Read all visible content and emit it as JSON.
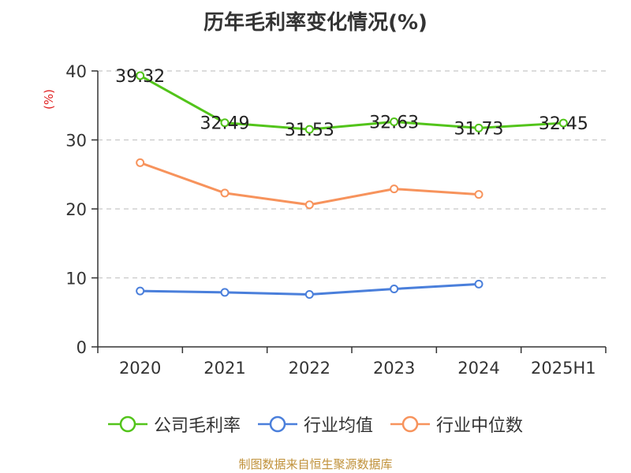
{
  "chart_data": {
    "type": "line",
    "title": "历年毛利率变化情况(%)",
    "ylabel": "(%)",
    "categories": [
      "2020",
      "2021",
      "2022",
      "2023",
      "2024",
      "2025H1"
    ],
    "ylim": [
      0,
      40
    ],
    "yticks": [
      0,
      10,
      20,
      30,
      40
    ],
    "grid": true,
    "legend_position": "bottom",
    "series": [
      {
        "name": "公司毛利率",
        "color": "#52c41a",
        "values": [
          39.32,
          32.49,
          31.53,
          32.63,
          31.73,
          32.45
        ],
        "show_labels": true
      },
      {
        "name": "行业均值",
        "color": "#4a7fdb",
        "values": [
          8.1,
          7.9,
          7.6,
          8.4,
          9.1,
          null
        ],
        "show_labels": false
      },
      {
        "name": "行业中位数",
        "color": "#f7935c",
        "values": [
          26.7,
          22.3,
          20.6,
          22.9,
          22.1,
          null
        ],
        "show_labels": false
      }
    ]
  },
  "source_text": "制图数据来自恒生聚源数据库"
}
